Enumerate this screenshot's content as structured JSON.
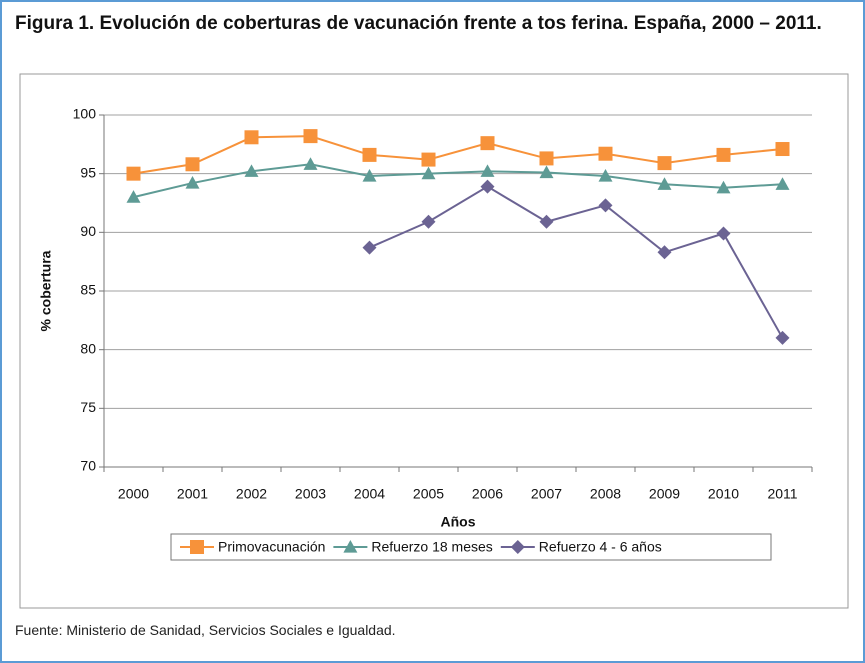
{
  "chart_data": {
    "type": "line",
    "title": "Figura 1. Evolución de coberturas de vacunación frente a tos ferina. España, 2000 – 2011.",
    "x_label": "Años",
    "y_label": "% cobertura",
    "source": "Fuente: Ministerio de Sanidad, Servicios Sociales e Igualdad.",
    "categories": [
      "2000",
      "2001",
      "2002",
      "2003",
      "2004",
      "2005",
      "2006",
      "2007",
      "2008",
      "2009",
      "2010",
      "2011"
    ],
    "series": [
      {
        "name": "Primovacunación",
        "color": "#f7923a",
        "marker": "square",
        "values": [
          95.0,
          95.8,
          98.1,
          98.2,
          96.6,
          96.2,
          97.6,
          96.3,
          96.7,
          95.9,
          96.6,
          97.1
        ]
      },
      {
        "name": "Refuerzo 18 meses",
        "color": "#5e9b95",
        "marker": "triangle",
        "values": [
          93.0,
          94.2,
          95.2,
          95.8,
          94.8,
          95.0,
          95.2,
          95.1,
          94.8,
          94.1,
          93.8,
          94.1
        ]
      },
      {
        "name": "Refuerzo 4 - 6 años",
        "color": "#6b6393",
        "marker": "diamond",
        "values": [
          null,
          null,
          null,
          null,
          88.7,
          90.9,
          93.9,
          90.9,
          92.3,
          88.3,
          89.9,
          81.0
        ]
      }
    ],
    "ylim": [
      70,
      100
    ],
    "yticks": [
      70,
      75,
      80,
      85,
      90,
      95,
      100
    ],
    "grid": true,
    "legend": "bottom"
  }
}
